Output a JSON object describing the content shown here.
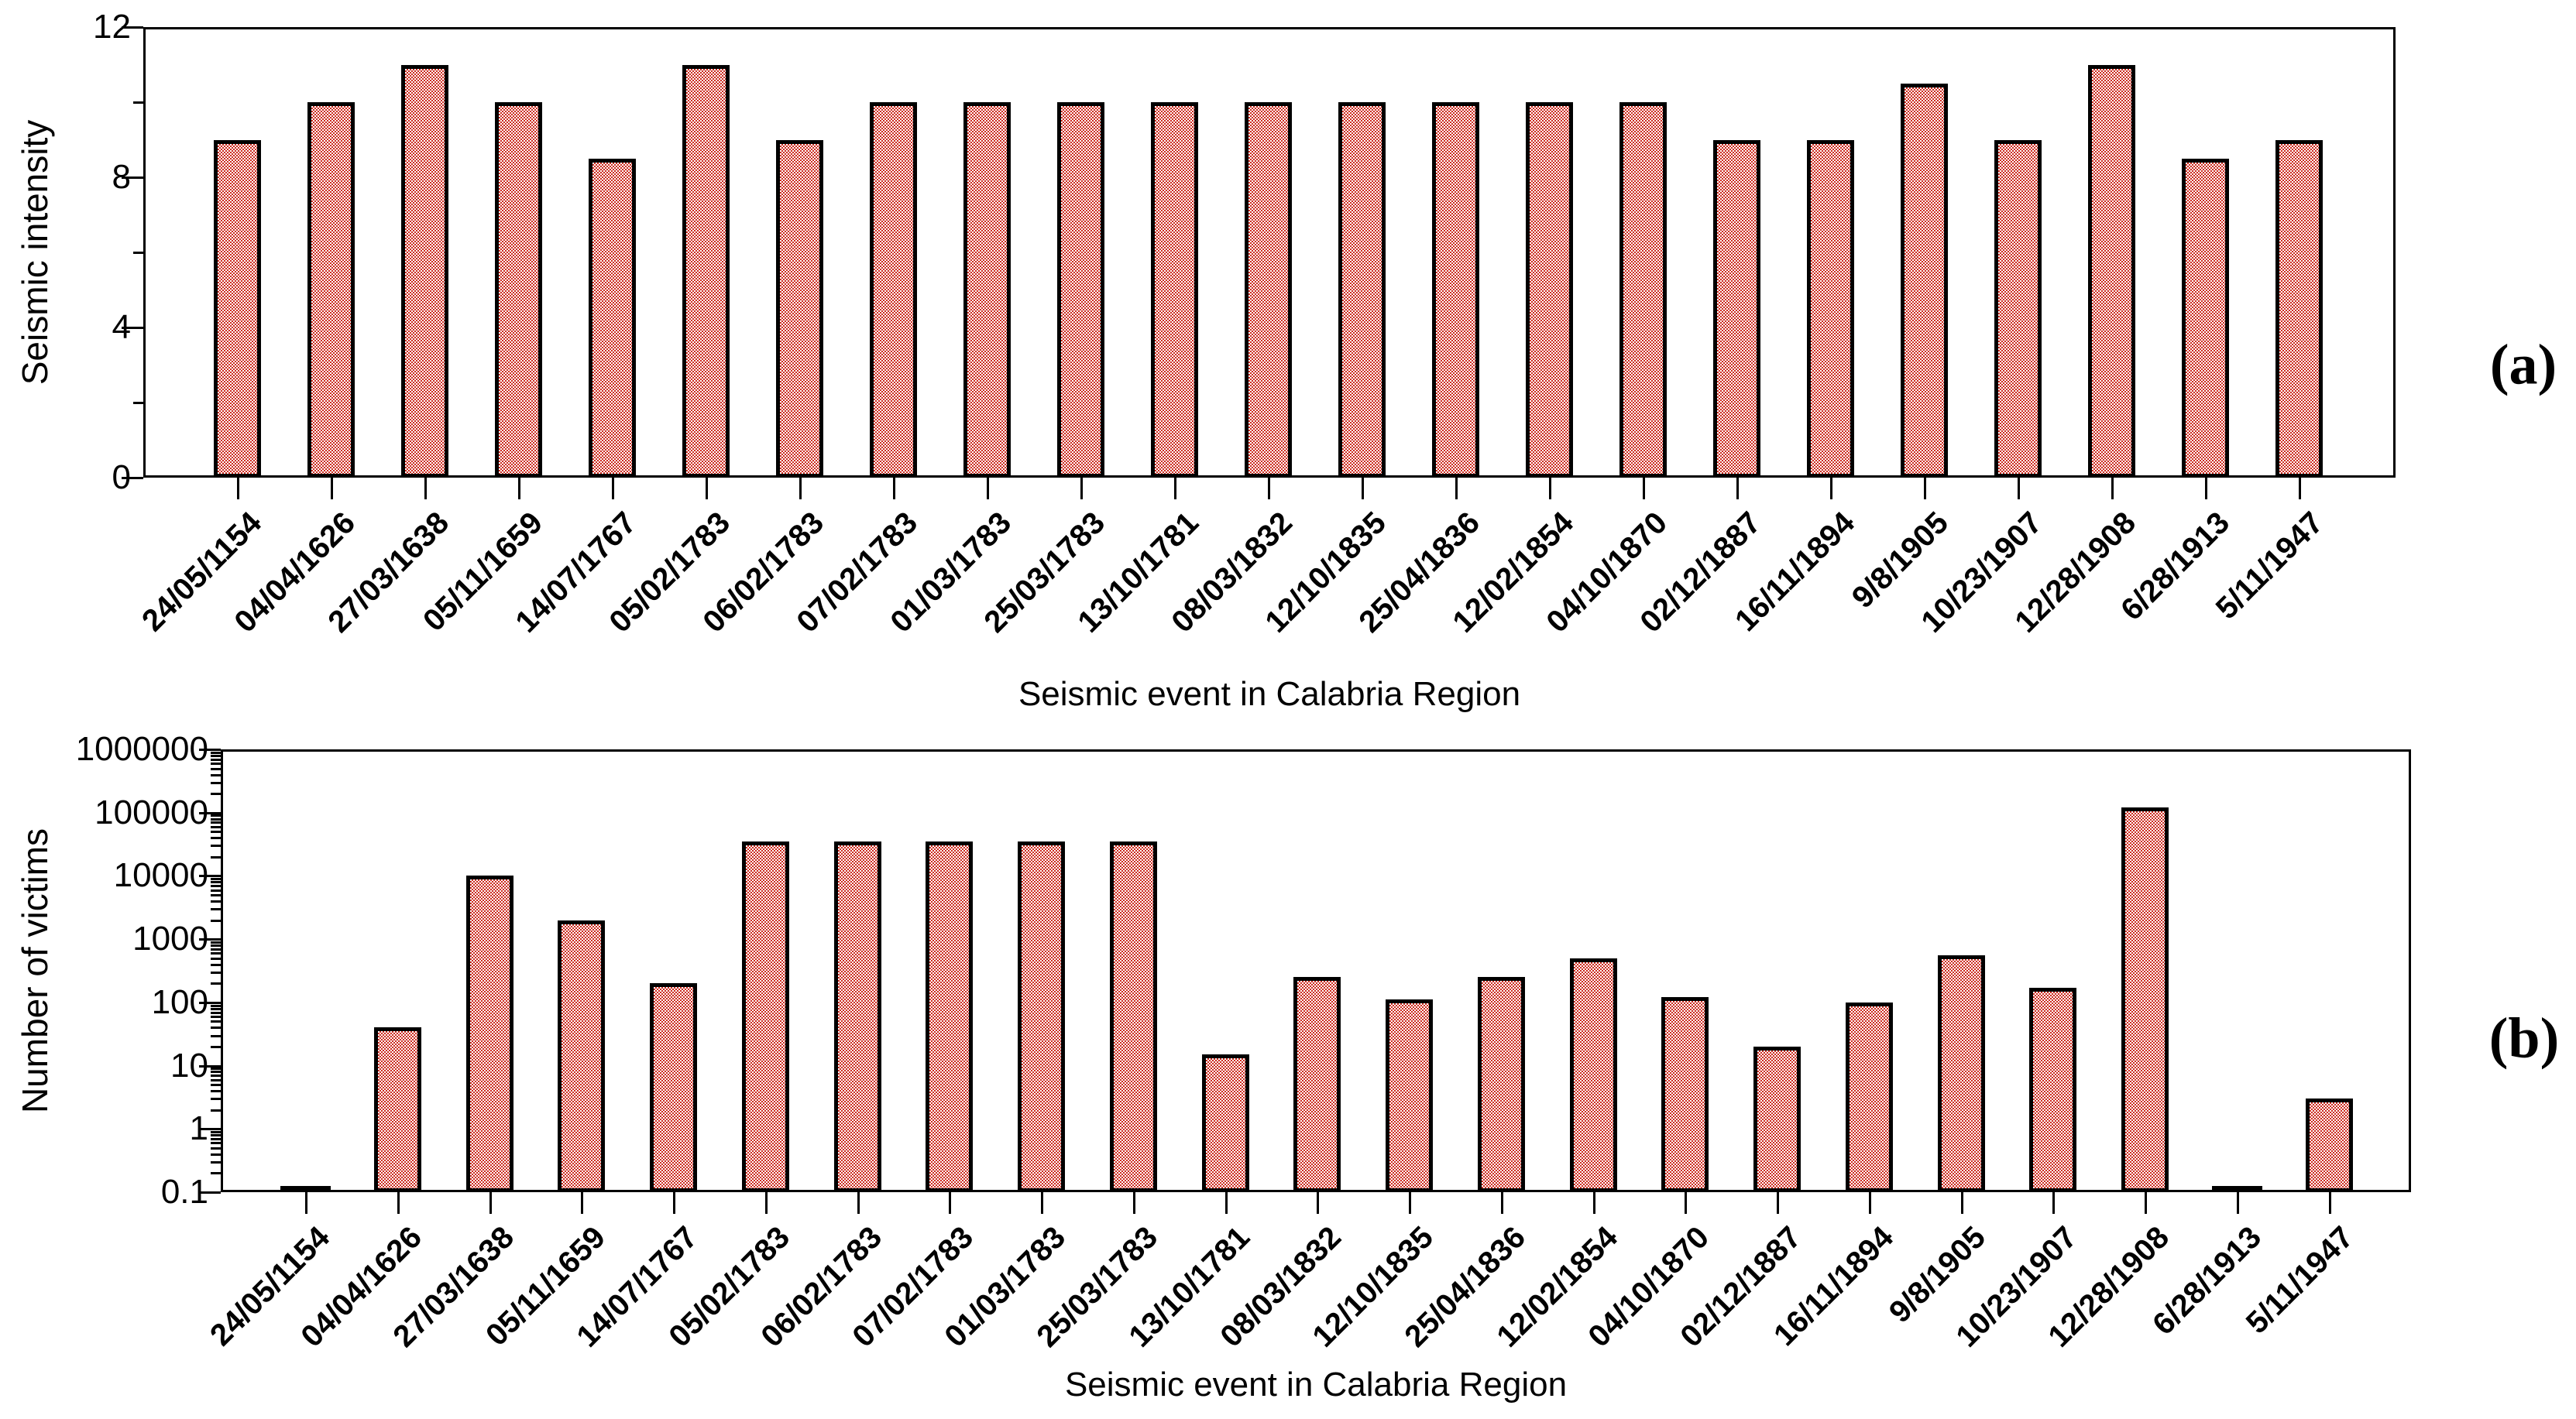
{
  "figure": {
    "background_color": "#ffffff",
    "axis_color": "#000000",
    "bar_pattern_color": "#cc2b1f",
    "bar_border_color": "#000000"
  },
  "chart_data": [
    {
      "type": "bar",
      "panel_tag": "(a)",
      "xlabel": "Seismic event in Calabria Region",
      "ylabel": "Seismic intensity",
      "yscale": "linear",
      "ylim": [
        0,
        12
      ],
      "yticks_major": [
        0,
        4,
        8,
        12
      ],
      "yticks_minor": [
        2,
        6,
        10
      ],
      "grid": false,
      "legend": "none",
      "categories": [
        "24/05/1154",
        "04/04/1626",
        "27/03/1638",
        "05/11/1659",
        "14/07/1767",
        "05/02/1783",
        "06/02/1783",
        "07/02/1783",
        "01/03/1783",
        "25/03/1783",
        "13/10/1781",
        "08/03/1832",
        "12/10/1835",
        "25/04/1836",
        "12/02/1854",
        "04/10/1870",
        "02/12/1887",
        "16/11/1894",
        "9/8/1905",
        "10/23/1907",
        "12/28/1908",
        "6/28/1913",
        "5/11/1947"
      ],
      "values": [
        9,
        10,
        11,
        10,
        8.5,
        11,
        9,
        10,
        10,
        10,
        10,
        10,
        10,
        10,
        10,
        10,
        9,
        9,
        10.5,
        9,
        11,
        8.5,
        9
      ]
    },
    {
      "type": "bar",
      "panel_tag": "(b)",
      "xlabel": "Seismic event in Calabria Region",
      "ylabel": "Number of victims",
      "yscale": "log",
      "ylim": [
        0.1,
        1000000
      ],
      "ytick_labels": [
        "0.1",
        "1",
        "10",
        "100",
        "1000",
        "10000",
        "100000",
        "1000000"
      ],
      "grid": false,
      "legend": "none",
      "baseline_note": "bars at 0.1 are drawn as flat dashes on the axis",
      "categories": [
        "24/05/1154",
        "04/04/1626",
        "27/03/1638",
        "05/11/1659",
        "14/07/1767",
        "05/02/1783",
        "06/02/1783",
        "07/02/1783",
        "01/03/1783",
        "25/03/1783",
        "13/10/1781",
        "08/03/1832",
        "12/10/1835",
        "25/04/1836",
        "12/02/1854",
        "04/10/1870",
        "02/12/1887",
        "16/11/1894",
        "9/8/1905",
        "10/23/1907",
        "12/28/1908",
        "6/28/1913",
        "5/11/1947"
      ],
      "values": [
        0.1,
        40,
        10000,
        2000,
        200,
        35000,
        35000,
        35000,
        35000,
        35000,
        15,
        250,
        110,
        250,
        500,
        120,
        20,
        100,
        550,
        170,
        120000,
        0.1,
        3
      ]
    }
  ]
}
